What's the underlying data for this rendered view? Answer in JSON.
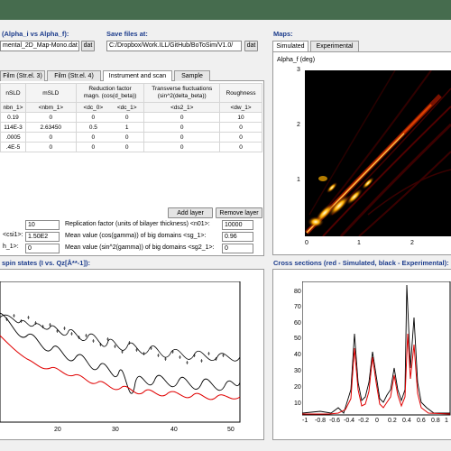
{
  "left_top": {
    "title": "(Alpha_i vs Alpha_f):",
    "file_value": "mental_2D_Map-Mono.dat",
    "dat_button": "dat"
  },
  "save": {
    "title": "Save files at:",
    "path_value": "C:/Dropbox/Work.ILL/GitHub/BoToSim/V1.0/",
    "dat_button": "dat"
  },
  "maps": {
    "title": "Maps:",
    "tabs": [
      "Simulated",
      "Experimental"
    ],
    "active_tab": 0,
    "ylabel": "Alpha_f (deg)",
    "y_ticks": [
      "3",
      "2",
      "1"
    ],
    "x_ticks": [
      "0",
      "1",
      "2"
    ]
  },
  "structure_tabs": [
    "Film (Str.el. 3)",
    "Film (Str.el. 4)",
    "Instrument and scan",
    "Sample"
  ],
  "table": {
    "headers": [
      "nSLD",
      "mSLD",
      "Reduction factor\nmagn. (cos(d_beta))",
      "Transverse fluctuations\n(sin^2(delta_beta))",
      "Roughness"
    ],
    "subheaders": [
      "nbn_1>",
      "<nbm_1>",
      "<dc_0>",
      "<dc_1>",
      "<ds2_1>",
      "<dw_1>"
    ],
    "rows": [
      [
        "0.19",
        "0",
        "0",
        "0",
        "0",
        "10"
      ],
      [
        "114E-3",
        "2.63450",
        "0.5",
        "1",
        "0",
        "0"
      ],
      [
        ".0005",
        "0",
        "0",
        "0",
        "0",
        "0"
      ],
      [
        ".4E-5",
        "0",
        "0",
        "0",
        "0",
        "0"
      ]
    ]
  },
  "buttons": {
    "add_layer": "Add layer",
    "remove_layer": "Remove layer"
  },
  "params": {
    "left_values": [
      "10",
      "1.50E2",
      "0"
    ],
    "left_labels": [
      "",
      "<csi1>:",
      "h_1>:"
    ],
    "right_labels": [
      "Replication factor (units of bilayer thickness) <n01>:",
      "Mean value (cos(gamma)) of big domains <sg_1>:",
      "Mean value (sin^2(gamma)) of big domains <sg2_1>:"
    ],
    "right_values": [
      "10000",
      "0.96",
      "0"
    ]
  },
  "spin_states": {
    "title": "spin states (I vs. Qz[Å**-1]):",
    "x_ticks": [
      "20",
      "30",
      "40",
      "50"
    ]
  },
  "cross_sections": {
    "title": "Cross sections (red - Simulated, black - Experimental):",
    "y_ticks": [
      "80",
      "70",
      "60",
      "50",
      "40",
      "30",
      "20",
      "10"
    ],
    "x_ticks": [
      "-1",
      "-0.8",
      "-0.6",
      "-0.4",
      "-0.2",
      "0",
      "0.2",
      "0.4",
      "0.6",
      "0.8",
      "1"
    ]
  },
  "colors": {
    "titlebar": "#466c4e",
    "section_title": "#1c3c8c",
    "simulated": "#e00000",
    "experimental": "#000000"
  }
}
